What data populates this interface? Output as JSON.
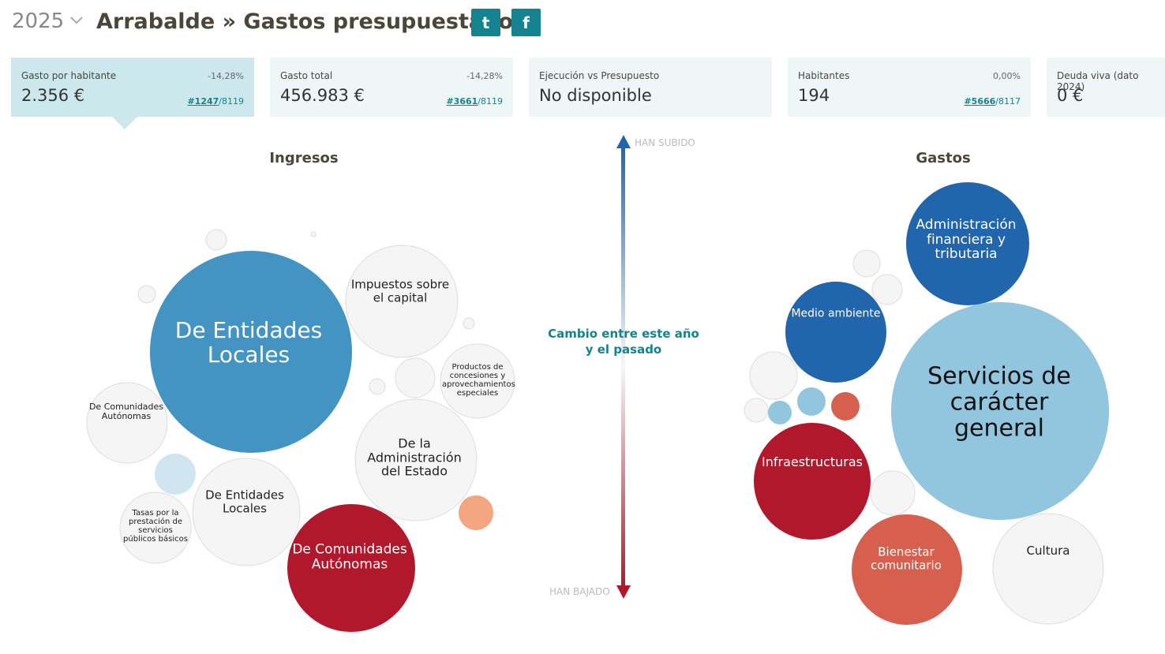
{
  "header": {
    "year": "2025",
    "title": "Arrabalde » Gastos presupuestados",
    "twitter": "t",
    "facebook": "f"
  },
  "cards": [
    {
      "label": "Gasto por habitante",
      "change": "-14,28%",
      "value": "2.356 €",
      "rank": "#1247",
      "rank_total": "/8119"
    },
    {
      "label": "Gasto total",
      "change": "-14,28%",
      "value": "456.983 €",
      "rank": "#3661",
      "rank_total": "/8119"
    },
    {
      "label": "Ejecución vs Presupuesto",
      "value": "No disponible"
    },
    {
      "label": "Habitantes",
      "change": "0,00%",
      "value": "194",
      "rank": "#5666",
      "rank_total": "/8117"
    },
    {
      "label": "Deuda viva (dato 2024)",
      "value": "0 €"
    }
  ],
  "income": {
    "title": "Ingresos",
    "bubbles": [
      "De Entidades Locales",
      "Impuestos sobre el capital",
      "Productos de concesiones y aprovechamientos especiales",
      "De Comunidades Autónomas",
      "De la Administración del Estado",
      "De Entidades Locales",
      "Tasas por la prestación de servicios públicos básicos",
      "De Comunidades Autónomas"
    ]
  },
  "legend": {
    "up": "HAN SUBIDO",
    "down": "HAN BAJADO",
    "caption": "Cambio entre este año y el pasado"
  },
  "expenses": {
    "title": "Gastos",
    "bubbles": [
      "Administración financiera y tributaria",
      "Medio ambiente",
      "Servicios de carácter general",
      "Infraestructuras",
      "Bienestar comunitario",
      "Cultura"
    ]
  }
}
